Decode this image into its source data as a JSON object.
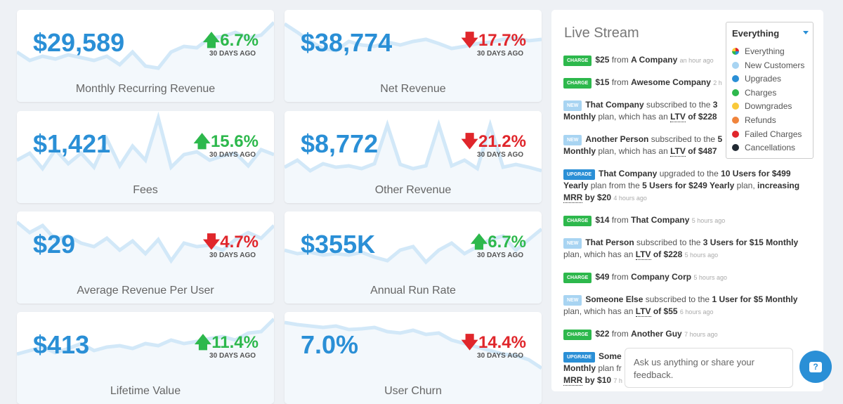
{
  "metrics": [
    {
      "value": "$29,589",
      "change": "6.7%",
      "direction": "up",
      "ago": "30 DAYS AGO",
      "label": "Monthly Recurring Revenue"
    },
    {
      "value": "$38,774",
      "change": "17.7%",
      "direction": "down",
      "ago": "30 DAYS AGO",
      "label": "Net Revenue"
    },
    {
      "value": "$1,421",
      "change": "15.6%",
      "direction": "up",
      "ago": "30 DAYS AGO",
      "label": "Fees"
    },
    {
      "value": "$8,772",
      "change": "21.2%",
      "direction": "down",
      "ago": "30 DAYS AGO",
      "label": "Other Revenue"
    },
    {
      "value": "$29",
      "change": "4.7%",
      "direction": "down",
      "ago": "30 DAYS AGO",
      "label": "Average Revenue Per User"
    },
    {
      "value": "$355K",
      "change": "6.7%",
      "direction": "up",
      "ago": "30 DAYS AGO",
      "label": "Annual Run Rate"
    },
    {
      "value": "$413",
      "change": "11.4%",
      "direction": "up",
      "ago": "30 DAYS AGO",
      "label": "Lifetime Value"
    },
    {
      "value": "7.0%",
      "change": "14.4%",
      "direction": "down",
      "ago": "30 DAYS AGO",
      "label": "User Churn"
    }
  ],
  "stream": {
    "title": "Live Stream",
    "filter": {
      "selected": "Everything",
      "options": [
        {
          "label": "Everything",
          "color": "multi"
        },
        {
          "label": "New Customers",
          "color": "#a8d4f2"
        },
        {
          "label": "Upgrades",
          "color": "#2a8fd6"
        },
        {
          "label": "Charges",
          "color": "#2db84c"
        },
        {
          "label": "Downgrades",
          "color": "#f9c93a"
        },
        {
          "label": "Refunds",
          "color": "#f0843c"
        },
        {
          "label": "Failed Charges",
          "color": "#e0262b"
        },
        {
          "label": "Cancellations",
          "color": "#222a33"
        }
      ]
    },
    "badges": {
      "charge": "CHARGE",
      "new": "NEW",
      "upgrade": "UPGRADE"
    },
    "words": {
      "from": "from",
      "subscribed": "subscribed to the",
      "plan_ltv": "plan, which has an",
      "ltv": "LTV",
      "of": "of",
      "upgraded": "upgraded to the",
      "plan_from": "plan from the",
      "plan": "plan,",
      "increasing": "increasing",
      "mrr": "MRR",
      "by": "by"
    },
    "items": [
      {
        "amount": "$25",
        "who": "A Company",
        "time": "an hour ago"
      },
      {
        "amount": "$15",
        "who": "Awesome Company",
        "time": "2 h"
      },
      {
        "who": "That Company",
        "plan_a": "3",
        "plan_b": "Monthly",
        "ltv": "$228"
      },
      {
        "who": "Another Person",
        "plan_a": "5",
        "plan_b": "Monthly",
        "ltv": "$487"
      },
      {
        "who": "That Company",
        "to": "10 Users for $499",
        "to2": "Yearly",
        "from_plan": "5 Users for $249 Yearly",
        "mrr": "$20",
        "time": "4 hours ago"
      },
      {
        "amount": "$14",
        "who": "That Company",
        "time": "5 hours ago"
      },
      {
        "who": "That Person",
        "plan": "3 Users for $15 Monthly",
        "ltv": "$228",
        "time": "5 hours ago"
      },
      {
        "amount": "$49",
        "who": "Company Corp",
        "time": "5 hours ago"
      },
      {
        "who": "Someone Else",
        "plan": "1 User for $5 Monthly",
        "ltv": "$55",
        "time": "6 hours ago"
      },
      {
        "amount": "$22",
        "who": "Another Guy",
        "time": "7 hours ago"
      },
      {
        "who": "Some",
        "line2": "Monthly",
        "line2b": "plan fr",
        "mrr": "$10",
        "time": "7 h"
      }
    ]
  },
  "feedback": {
    "prompt": "Ask us anything or share your feedback.",
    "icon": "question-bubble-icon"
  }
}
